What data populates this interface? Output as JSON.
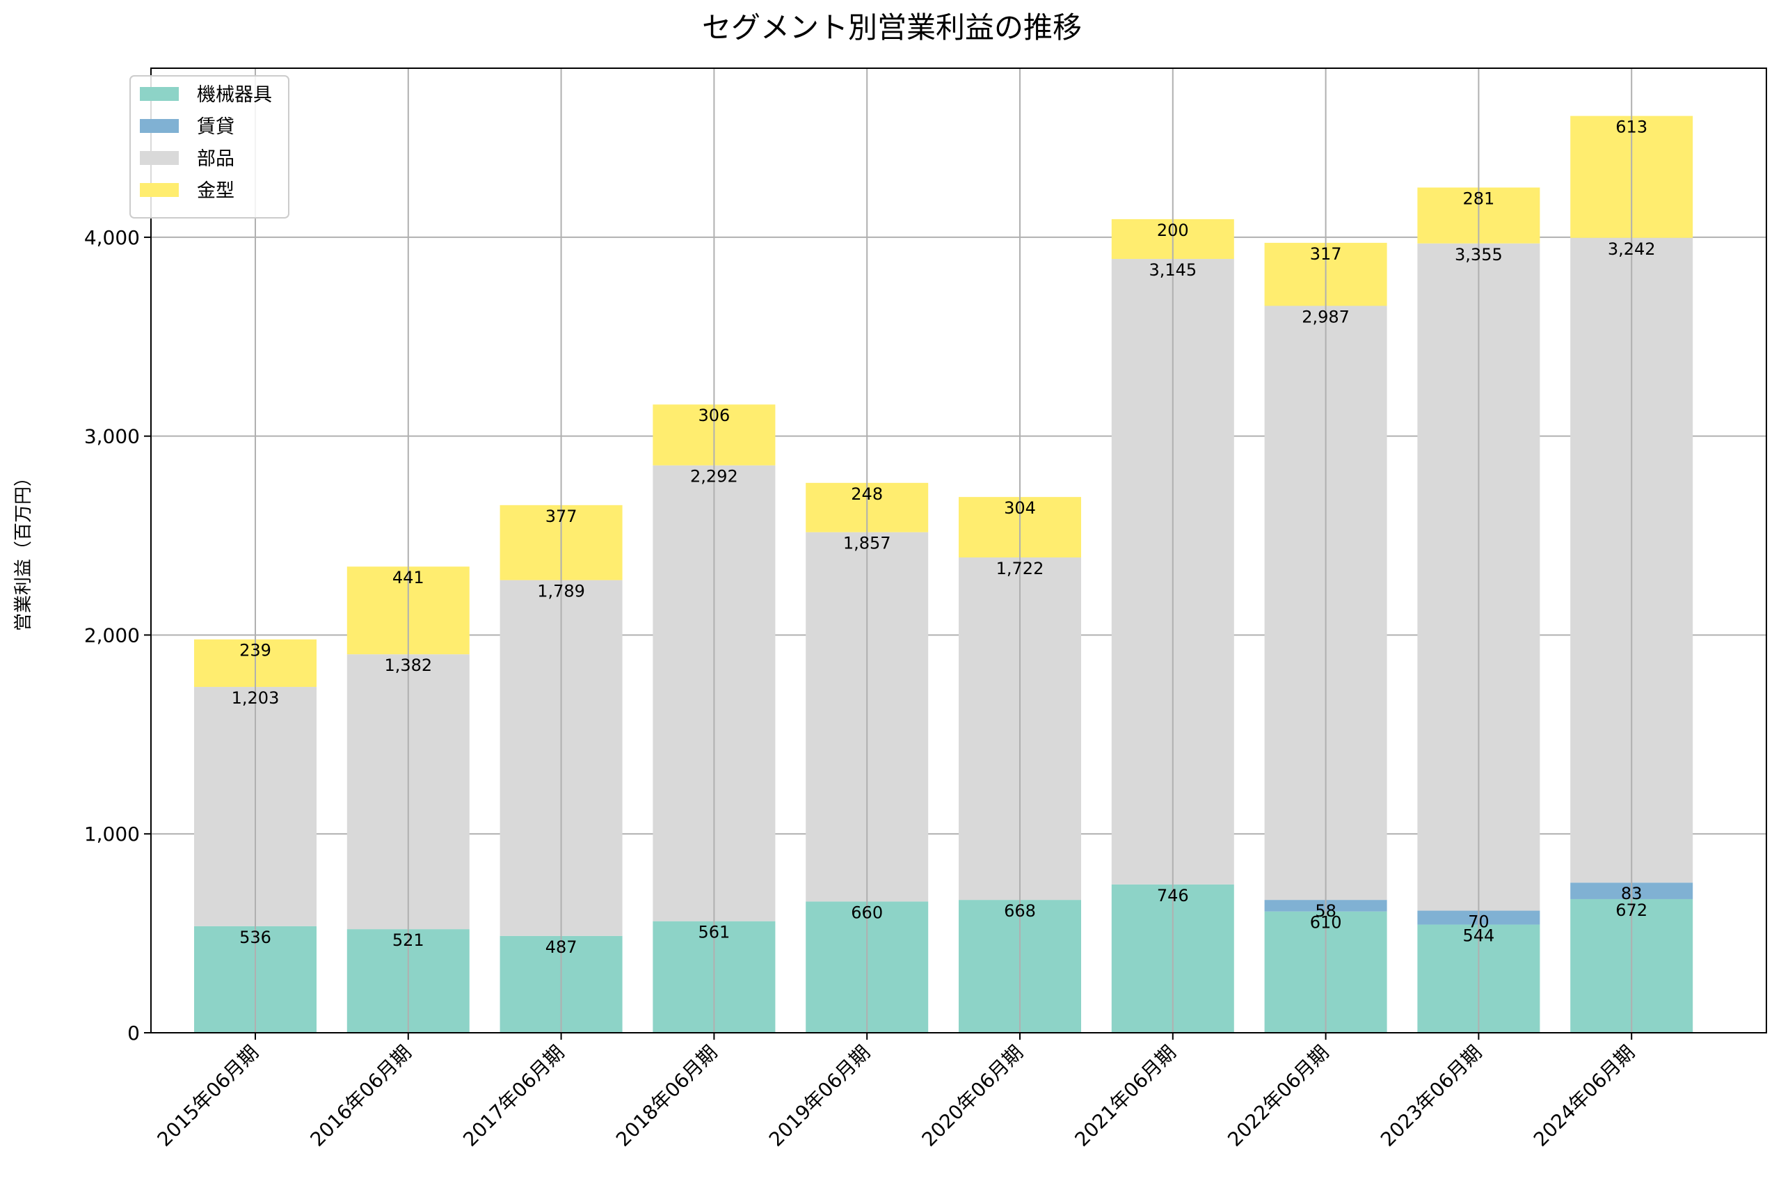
{
  "chart_data": {
    "type": "bar",
    "stacked": true,
    "title": "セグメント別営業利益の推移",
    "ylabel": "営業利益（百万円）",
    "xlabel": "",
    "ylim": [
      0,
      4850
    ],
    "yticks": [
      0,
      1000,
      2000,
      3000,
      4000
    ],
    "ytick_labels": [
      "0",
      "1,000",
      "2,000",
      "3,000",
      "4,000"
    ],
    "grid": true,
    "legend_position": "top-left",
    "categories": [
      "2015年06月期",
      "2016年06月期",
      "2017年06月期",
      "2018年06月期",
      "2019年06月期",
      "2020年06月期",
      "2021年06月期",
      "2022年06月期",
      "2023年06月期",
      "2024年06月期"
    ],
    "series": [
      {
        "name": "機械器具",
        "color": "#8dd3c7",
        "values": [
          536,
          521,
          487,
          561,
          660,
          668,
          746,
          610,
          544,
          672
        ]
      },
      {
        "name": "賃貸",
        "color": "#80b1d3",
        "values": [
          0,
          0,
          0,
          0,
          0,
          0,
          0,
          58,
          70,
          83
        ]
      },
      {
        "name": "部品",
        "color": "#d9d9d9",
        "values": [
          1203,
          1382,
          1789,
          2292,
          1857,
          1722,
          3145,
          2987,
          3355,
          3242
        ]
      },
      {
        "name": "金型",
        "color": "#ffed6f",
        "values": [
          239,
          441,
          377,
          306,
          248,
          304,
          200,
          317,
          281,
          613
        ]
      }
    ]
  }
}
